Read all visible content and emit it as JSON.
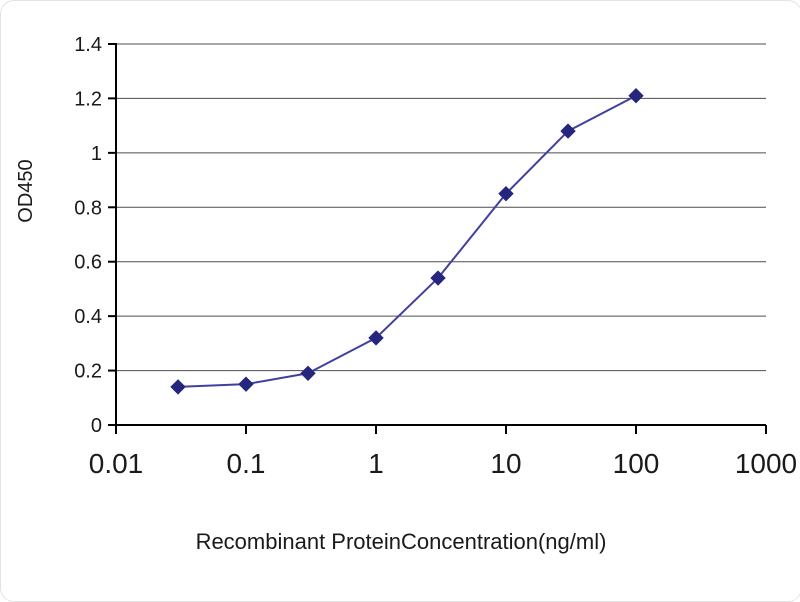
{
  "chart_data": {
    "type": "line",
    "x": [
      0.03,
      0.1,
      0.3,
      1,
      3,
      10,
      30,
      100
    ],
    "y": [
      0.14,
      0.15,
      0.19,
      0.32,
      0.54,
      0.85,
      1.08,
      1.21
    ],
    "title": "",
    "xlabel": "Recombinant ProteinConcentration(ng/ml)",
    "ylabel": "OD450",
    "xscale": "log",
    "xlim": [
      0.01,
      1000
    ],
    "ylim": [
      0,
      1.4
    ],
    "x_ticks": [
      0.01,
      0.1,
      1,
      10,
      100,
      1000
    ],
    "x_tick_labels": [
      "0.01",
      "0.1",
      "1",
      "10",
      "100",
      "1000"
    ],
    "y_ticks": [
      0,
      0.2,
      0.4,
      0.6,
      0.8,
      1,
      1.2,
      1.4
    ],
    "y_tick_labels": [
      "0",
      "0.2",
      "0.4",
      "0.6",
      "0.8",
      "1",
      "1.2",
      "1.4"
    ],
    "grid": "horizontal",
    "legend": "none",
    "line_color": "#4040A0",
    "marker": "diamond",
    "marker_color": "#26267F",
    "grid_color": "#4d4d4d",
    "axis_color": "#000000",
    "tick_label_color": "#1a1a1a",
    "background": "#FFFFFF"
  }
}
